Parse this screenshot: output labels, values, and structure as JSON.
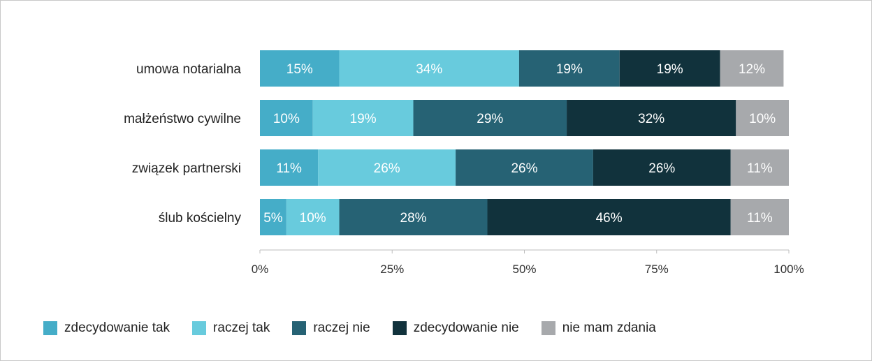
{
  "chart_data": {
    "type": "bar",
    "orientation": "horizontal",
    "stacked": true,
    "percent_stacked": true,
    "title": "",
    "xlabel": "",
    "ylabel": "",
    "xlim": [
      0,
      100
    ],
    "x_ticks": [
      0,
      25,
      50,
      75,
      100
    ],
    "x_tick_labels": [
      "0%",
      "25%",
      "50%",
      "75%",
      "100%"
    ],
    "grid": false,
    "legend_position": "bottom-left",
    "categories": [
      "umowa notarialna",
      "małżeństwo cywilne",
      "związek partnerski",
      "ślub kościelny"
    ],
    "series": [
      {
        "name": "zdecydowanie tak",
        "color": "#45adc8",
        "values": [
          15,
          10,
          11,
          5
        ]
      },
      {
        "name": "raczej tak",
        "color": "#68cbdd",
        "values": [
          34,
          19,
          26,
          10
        ]
      },
      {
        "name": "raczej nie",
        "color": "#266274",
        "values": [
          19,
          29,
          26,
          28
        ]
      },
      {
        "name": "zdecydowanie nie",
        "color": "#11323c",
        "values": [
          19,
          32,
          26,
          46
        ]
      },
      {
        "name": "nie mam zdania",
        "color": "#a7a9ac",
        "values": [
          12,
          10,
          11,
          11
        ]
      }
    ],
    "data_labels": [
      [
        "15%",
        "34%",
        "19%",
        "19%",
        "12%"
      ],
      [
        "10%",
        "19%",
        "29%",
        "32%",
        "10%"
      ],
      [
        "11%",
        "26%",
        "26%",
        "26%",
        "11%"
      ],
      [
        "5%",
        "10%",
        "28%",
        "46%",
        "11%"
      ]
    ]
  }
}
